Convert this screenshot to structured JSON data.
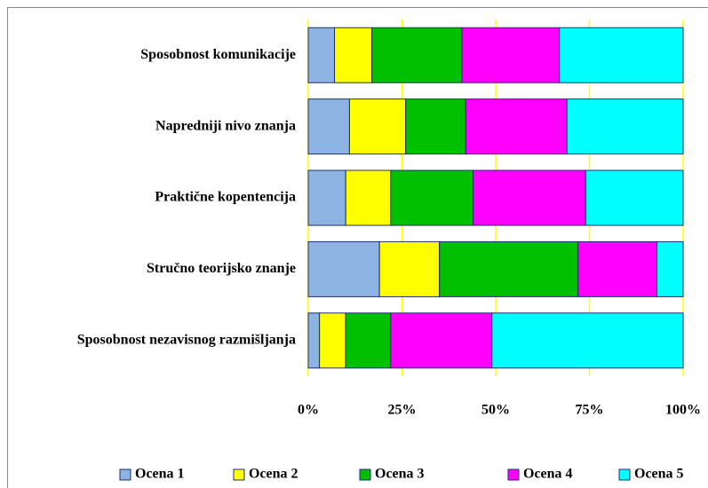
{
  "chart_data": {
    "type": "bar",
    "orientation": "horizontal",
    "stacked": true,
    "categories": [
      "Sposobnost komunikacije",
      "Napredniji nivo znanja",
      "Praktične kopentencija",
      "Stručno teorijsko znanje",
      "Sposobnost nezavisnog razmišljanja"
    ],
    "series": [
      {
        "name": "Ocena 1",
        "color": "#8db3e2",
        "values": [
          7,
          11,
          10,
          19,
          3
        ]
      },
      {
        "name": "Ocena 2",
        "color": "#ffff00",
        "values": [
          10,
          15,
          12,
          16,
          7
        ]
      },
      {
        "name": "Ocena 3",
        "color": "#00c000",
        "values": [
          24,
          16,
          22,
          37,
          12
        ]
      },
      {
        "name": "Ocena 4",
        "color": "#ff00ff",
        "values": [
          26,
          27,
          30,
          21,
          27
        ]
      },
      {
        "name": "Ocena 5",
        "color": "#00ffff",
        "values": [
          33,
          31,
          26,
          7,
          51
        ]
      }
    ],
    "xlim": [
      0,
      100
    ],
    "xticks": [
      {
        "value": 0,
        "label": "0%"
      },
      {
        "value": 25,
        "label": "25%"
      },
      {
        "value": 50,
        "label": "50%"
      },
      {
        "value": 75,
        "label": "75%"
      },
      {
        "value": 100,
        "label": "100%"
      }
    ],
    "grid": true,
    "grid_color": "#ffff00",
    "legend": "bottom"
  }
}
